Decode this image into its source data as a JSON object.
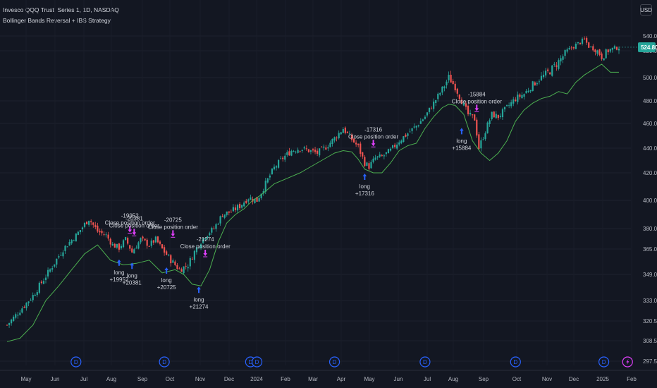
{
  "header": {
    "symbol_line": "Invesco QQQ Trust, Series 1, 1D, NASDAQ",
    "strategy_line": "Bollinger Bands Reversal + IBS Strategy"
  },
  "currency_button": "USD",
  "colors": {
    "background": "#131722",
    "up_candle": "#26a69a",
    "down_candle": "#ef5350",
    "band_line": "#4caf50",
    "long_arrow": "#2962ff",
    "close_arrow": "#e040fb",
    "price_tag": "#26a69a",
    "event_marker": "#2962ff",
    "flash_marker": "#e040fb"
  },
  "chart_data": {
    "type": "candlestick",
    "price_axis": {
      "range": [
        297.5,
        560
      ],
      "ticks": [
        "540.00",
        "520.00",
        "500.00",
        "480.00",
        "460.00",
        "440.00",
        "420.00",
        "400.00",
        "380.00",
        "365.00",
        "349.00",
        "333.00",
        "320.50",
        "308.50",
        "297.50"
      ],
      "last_price_label": "524.80"
    },
    "time_axis": {
      "labels": [
        "May",
        "Jun",
        "Jul",
        "Aug",
        "Sep",
        "Oct",
        "Nov",
        "Dec",
        "2024",
        "Feb",
        "Mar",
        "Apr",
        "May",
        "Jun",
        "Jul",
        "Aug",
        "Sep",
        "Oct",
        "Nov",
        "Dec",
        "2025",
        "Feb"
      ]
    },
    "close_path": [
      [
        0,
        318
      ],
      [
        4,
        324
      ],
      [
        12,
        336
      ],
      [
        20,
        352
      ],
      [
        26,
        365
      ],
      [
        32,
        375
      ],
      [
        38,
        387
      ],
      [
        42,
        378
      ],
      [
        46,
        375
      ],
      [
        49,
        368
      ],
      [
        52,
        366
      ],
      [
        55,
        372
      ],
      [
        58,
        363
      ],
      [
        62,
        372
      ],
      [
        66,
        368
      ],
      [
        69,
        372
      ],
      [
        72,
        365
      ],
      [
        76,
        358
      ],
      [
        80,
        352
      ],
      [
        84,
        355
      ],
      [
        88,
        366
      ],
      [
        92,
        375
      ],
      [
        96,
        380
      ],
      [
        100,
        390
      ],
      [
        104,
        392
      ],
      [
        108,
        396
      ],
      [
        112,
        402
      ],
      [
        116,
        400
      ],
      [
        120,
        412
      ],
      [
        124,
        424
      ],
      [
        128,
        432
      ],
      [
        132,
        438
      ],
      [
        136,
        440
      ],
      [
        140,
        438
      ],
      [
        144,
        436
      ],
      [
        148,
        441
      ],
      [
        152,
        448
      ],
      [
        156,
        456
      ],
      [
        160,
        447
      ],
      [
        163,
        441
      ],
      [
        166,
        428
      ],
      [
        168,
        425
      ],
      [
        171,
        432
      ],
      [
        174,
        433
      ],
      [
        178,
        438
      ],
      [
        182,
        446
      ],
      [
        186,
        452
      ],
      [
        190,
        458
      ],
      [
        194,
        466
      ],
      [
        198,
        478
      ],
      [
        202,
        490
      ],
      [
        205,
        500
      ],
      [
        208,
        492
      ],
      [
        211,
        480
      ],
      [
        214,
        468
      ],
      [
        217,
        464
      ],
      [
        219,
        440
      ],
      [
        222,
        454
      ],
      [
        225,
        468
      ],
      [
        228,
        466
      ],
      [
        232,
        474
      ],
      [
        236,
        482
      ],
      [
        240,
        486
      ],
      [
        244,
        494
      ],
      [
        248,
        500
      ],
      [
        252,
        505
      ],
      [
        256,
        512
      ],
      [
        260,
        520
      ],
      [
        264,
        528
      ],
      [
        268,
        535
      ],
      [
        270,
        526
      ],
      [
        273,
        522
      ],
      [
        276,
        516
      ],
      [
        280,
        522
      ],
      [
        284,
        524.8
      ]
    ],
    "band_path": [
      [
        0,
        308
      ],
      [
        6,
        310
      ],
      [
        12,
        318
      ],
      [
        18,
        333
      ],
      [
        24,
        342
      ],
      [
        30,
        352
      ],
      [
        36,
        362
      ],
      [
        42,
        368
      ],
      [
        48,
        358
      ],
      [
        54,
        355
      ],
      [
        60,
        356
      ],
      [
        66,
        358
      ],
      [
        72,
        350
      ],
      [
        78,
        352
      ],
      [
        82,
        349
      ],
      [
        86,
        343
      ],
      [
        90,
        342
      ],
      [
        94,
        352
      ],
      [
        98,
        370
      ],
      [
        102,
        384
      ],
      [
        106,
        390
      ],
      [
        110,
        394
      ],
      [
        114,
        400
      ],
      [
        118,
        404
      ],
      [
        124,
        412
      ],
      [
        130,
        416
      ],
      [
        136,
        420
      ],
      [
        140,
        424
      ],
      [
        144,
        428
      ],
      [
        148,
        432
      ],
      [
        152,
        436
      ],
      [
        156,
        438
      ],
      [
        160,
        437
      ],
      [
        163,
        431
      ],
      [
        166,
        423
      ],
      [
        170,
        420
      ],
      [
        174,
        420
      ],
      [
        178,
        428
      ],
      [
        182,
        438
      ],
      [
        186,
        442
      ],
      [
        190,
        444
      ],
      [
        194,
        456
      ],
      [
        198,
        466
      ],
      [
        202,
        474
      ],
      [
        205,
        477
      ],
      [
        208,
        476
      ],
      [
        212,
        468
      ],
      [
        216,
        446
      ],
      [
        220,
        436
      ],
      [
        224,
        430
      ],
      [
        228,
        436
      ],
      [
        232,
        446
      ],
      [
        236,
        462
      ],
      [
        240,
        472
      ],
      [
        244,
        478
      ],
      [
        248,
        482
      ],
      [
        252,
        484
      ],
      [
        256,
        488
      ],
      [
        260,
        486
      ],
      [
        264,
        496
      ],
      [
        268,
        502
      ],
      [
        272,
        506
      ],
      [
        276,
        510
      ],
      [
        280,
        504
      ],
      [
        284,
        504
      ]
    ],
    "trades": [
      {
        "day": 52,
        "price": 362,
        "side": "long",
        "entry_label": "long",
        "entry_qty": "+19952",
        "exit_day": 57,
        "exit_price": 373,
        "exit_qty": "-19952",
        "exit_label": "Close position order"
      },
      {
        "day": 58,
        "price": 360,
        "side": "long",
        "entry_label": "long",
        "entry_qty": "+20381",
        "exit_day": 59,
        "exit_price": 371,
        "exit_qty": "-20381",
        "exit_label": "Close position order"
      },
      {
        "day": 74,
        "price": 357,
        "side": "long",
        "entry_label": "long",
        "entry_qty": "+20725",
        "exit_day": 77,
        "exit_price": 370,
        "exit_qty": "-20725",
        "exit_label": "Close position order"
      },
      {
        "day": 89,
        "price": 345,
        "side": "long",
        "entry_label": "long",
        "entry_qty": "+21274",
        "exit_day": 92,
        "exit_price": 357,
        "exit_qty": "-21274",
        "exit_label": "Close position order"
      },
      {
        "day": 166,
        "price": 424,
        "side": "long",
        "entry_label": "long",
        "entry_qty": "+17316",
        "exit_day": 170,
        "exit_price": 437,
        "exit_qty": "-17316",
        "exit_label": "Close position order"
      },
      {
        "day": 211,
        "price": 461,
        "side": "long",
        "entry_label": "long",
        "entry_qty": "+15884",
        "exit_day": 218,
        "exit_price": 466,
        "exit_qty": "-15884",
        "exit_label": "Close position order"
      }
    ],
    "event_markers": [
      {
        "day": 32,
        "symbol": "D"
      },
      {
        "day": 73,
        "symbol": "D"
      },
      {
        "day": 113,
        "symbol": "D"
      },
      {
        "day": 116,
        "symbol": "D"
      },
      {
        "day": 152,
        "symbol": "D"
      },
      {
        "day": 194,
        "symbol": "D"
      },
      {
        "day": 236,
        "symbol": "D"
      },
      {
        "day": 277,
        "symbol": "D"
      },
      {
        "day": 288,
        "symbol": "flash"
      }
    ]
  }
}
